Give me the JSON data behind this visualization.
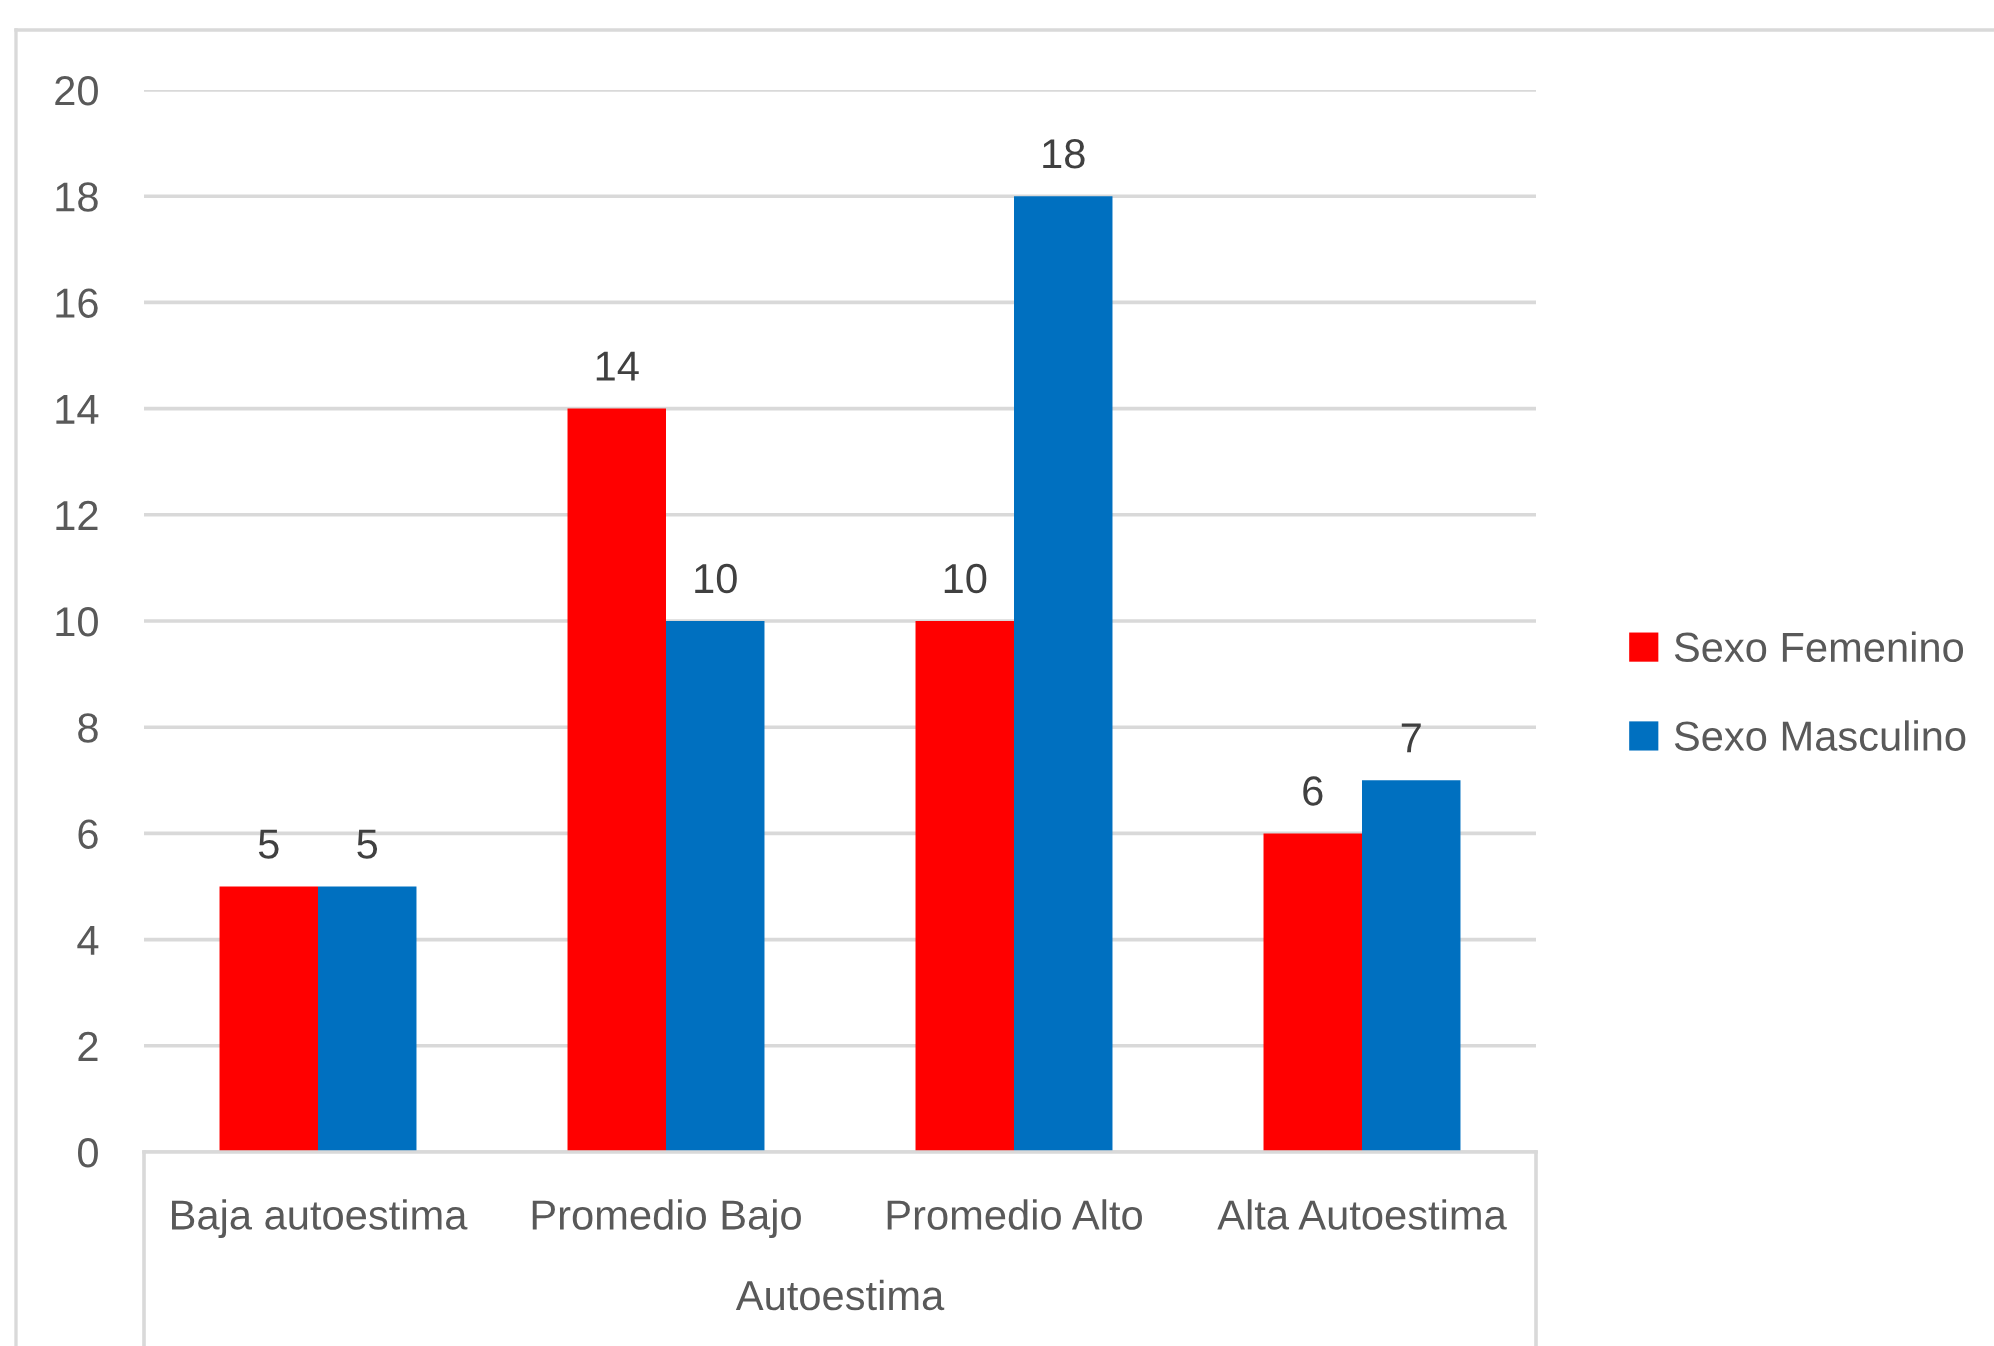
{
  "chart_data": {
    "type": "bar",
    "categories": [
      "Baja autoestima",
      "Promedio Bajo",
      "Promedio Alto",
      "Alta Autoestima"
    ],
    "xlabel": "Autoestima",
    "series": [
      {
        "name": "Sexo Femenino",
        "color": "#ff0000",
        "values": [
          5,
          14,
          10,
          6
        ]
      },
      {
        "name": "Sexo Masculino",
        "color": "#0070c0",
        "values": [
          5,
          10,
          18,
          7
        ]
      }
    ],
    "ylim": [
      0,
      20
    ],
    "yticks": [
      0,
      2,
      4,
      6,
      8,
      10,
      12,
      14,
      16,
      18,
      20
    ],
    "grid": "y",
    "legend": "right",
    "data_labels": true
  }
}
